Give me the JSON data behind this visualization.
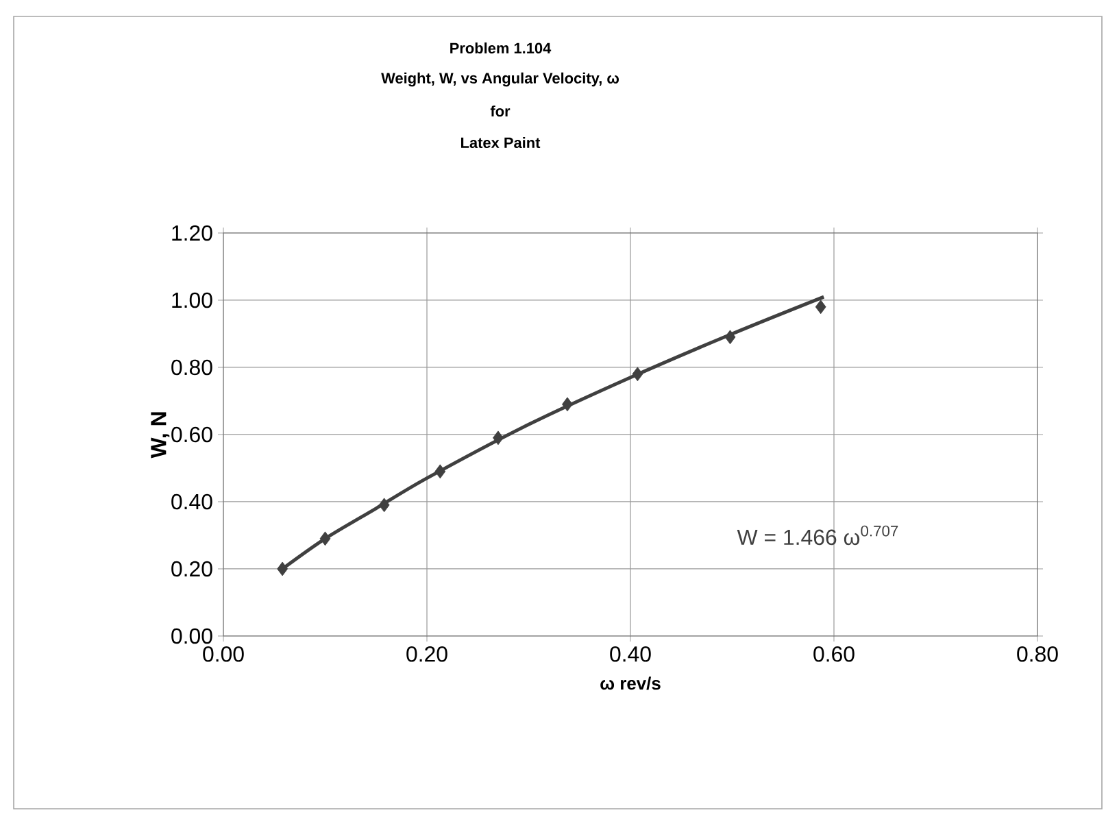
{
  "chart_data": {
    "type": "scatter",
    "title": "Problem 1.104",
    "subtitle": "Weight, W, vs Angular Velocity, ω",
    "annotations": [
      "for",
      "Latex Paint",
      "W = 1.466 ω$^{0.707}$"
    ],
    "xlabel": "ω rev/s",
    "ylabel": "W, N",
    "xlim": [
      0,
      0.8
    ],
    "xticks": [
      {
        "value": 0,
        "label": "0.00"
      },
      {
        "value": 0.2,
        "label": "0.20"
      },
      {
        "value": 0.4,
        "label": "0.40"
      },
      {
        "value": 0.6,
        "label": "0.60"
      },
      {
        "value": 0.8,
        "label": "0.80"
      }
    ],
    "ylim": [
      0,
      1.2
    ],
    "yticks": [
      {
        "value": 0,
        "label": "0.00"
      },
      {
        "value": 0.2,
        "label": "0.20"
      },
      {
        "value": 0.4,
        "label": "0.40"
      },
      {
        "value": 0.6,
        "label": "0.60"
      },
      {
        "value": 0.8,
        "label": "0.80"
      },
      {
        "value": 1.0,
        "label": "1.00"
      },
      {
        "value": 1.2,
        "label": "1.20"
      }
    ],
    "grid": true,
    "series": [
      {
        "type": "line",
        "color": "#404040",
        "marker": "none",
        "line_style": "solid",
        "x": [
          0.058,
          0.1,
          0.15,
          0.2,
          0.3,
          0.4,
          0.5,
          0.59
        ],
        "values": [
          0.2,
          0.29,
          0.38,
          0.47,
          0.63,
          0.77,
          0.9,
          1.01
        ]
      },
      {
        "color": "#404040",
        "marker": "diamond",
        "x": [
          0.058,
          0.1,
          0.158,
          0.213,
          0.27,
          0.338,
          0.407,
          0.498,
          0.587
        ],
        "values": [
          0.2,
          0.29,
          0.39,
          0.49,
          0.59,
          0.69,
          0.78,
          0.89,
          0.98
        ]
      }
    ]
  }
}
